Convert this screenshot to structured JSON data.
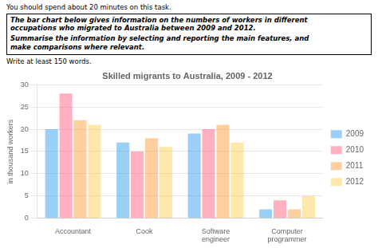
{
  "chart_data": {
    "type": "bar",
    "title": "Skilled migrants to Australia, 2009 - 2012",
    "annotations": [
      "You should spend about 20 minutes on this task.",
      "The bar chart below gives information on the numbers of workers in different\noccupations who migrated to Australia between 2009 and 2012.",
      "Summarise the information by selecting and reporting the main features, and\nmake comparisons where relevant.",
      "Write at least 150 words."
    ],
    "categories": [
      "Accountant",
      "Cook",
      "Software\nengineer",
      "Computer\nprogrammer"
    ],
    "series": [
      {
        "name": "2009",
        "values": [
          20,
          17,
          19,
          2
        ]
      },
      {
        "name": "2010",
        "values": [
          28,
          15,
          20,
          4
        ]
      },
      {
        "name": "2011",
        "values": [
          22,
          18,
          21,
          2
        ]
      },
      {
        "name": "2012",
        "values": [
          21,
          16,
          17,
          5
        ]
      }
    ],
    "ylabel": "in thousand workers",
    "ylim": [
      0,
      30
    ],
    "yticks": [
      0,
      5,
      10,
      15,
      20,
      25,
      30
    ],
    "grid": true,
    "legend": "right"
  }
}
